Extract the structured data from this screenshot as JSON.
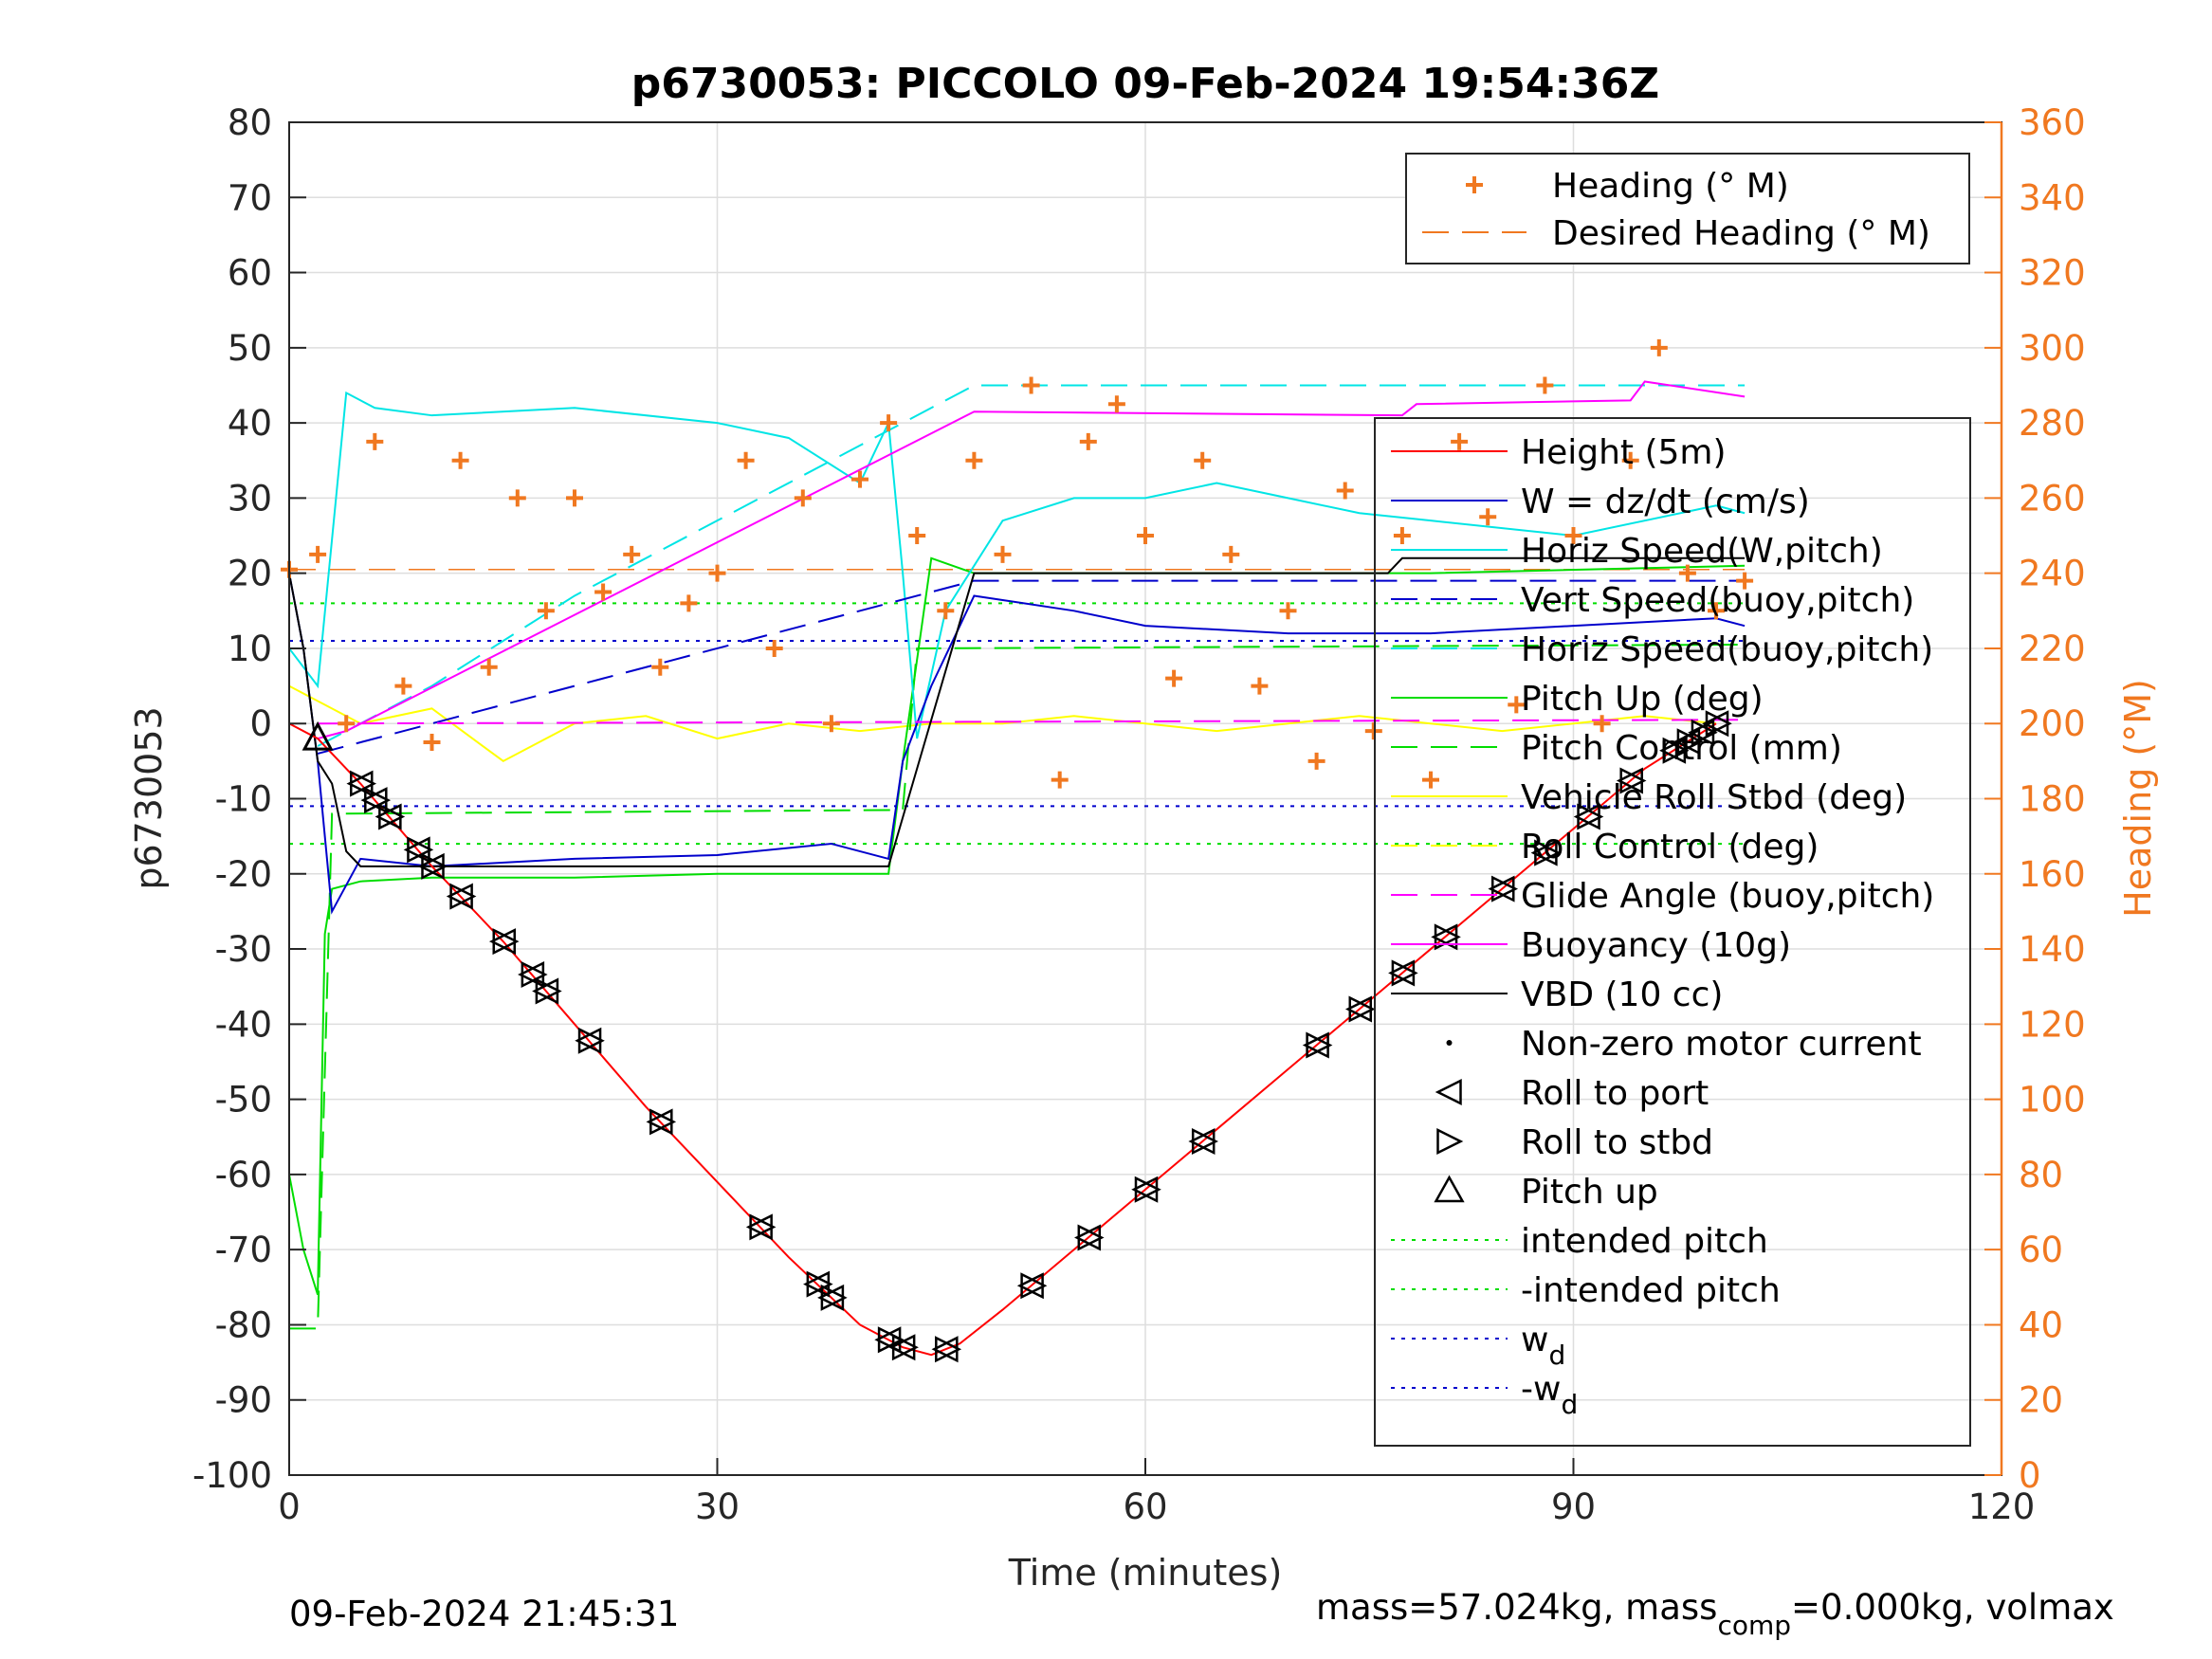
{
  "chart_data": {
    "type": "line",
    "title": "p6730053: PICCOLO 09-Feb-2024 19:54:36Z",
    "xlabel": "Time (minutes)",
    "ylabel": "p6730053",
    "y2label": "Heading (°M)",
    "xlim": [
      0,
      120
    ],
    "ylim": [
      -100,
      80
    ],
    "y2lim": [
      0,
      360
    ],
    "xticks": [
      "0",
      "30",
      "60",
      "90",
      "120"
    ],
    "yticks": [
      "80",
      "70",
      "60",
      "50",
      "40",
      "30",
      "20",
      "10",
      "0",
      "-10",
      "-20",
      "-30",
      "-40",
      "-50",
      "-60",
      "-70",
      "-80",
      "-90",
      "-100"
    ],
    "y2ticks": [
      "360",
      "340",
      "320",
      "300",
      "280",
      "260",
      "240",
      "220",
      "200",
      "180",
      "160",
      "140",
      "120",
      "100",
      "80",
      "60",
      "40",
      "20",
      "0"
    ],
    "grid": true,
    "legend_top": [
      {
        "name": "Heading (° M)",
        "color": "#f07820",
        "style": "plus"
      },
      {
        "name": "Desired Heading (° M)",
        "color": "#f07820",
        "style": "dashed"
      }
    ],
    "legend_main": [
      {
        "name": "Height (5m)",
        "color": "#ff0000",
        "style": "solid"
      },
      {
        "name": "W = dz/dt (cm/s)",
        "color": "#0000cc",
        "style": "solid"
      },
      {
        "name": "Horiz Speed(W,pitch)",
        "color": "#00e5e5",
        "style": "solid"
      },
      {
        "name": "Vert Speed(buoy,pitch)",
        "color": "#0000cc",
        "style": "dashed"
      },
      {
        "name": "Horiz Speed(buoy,pitch)",
        "color": "#00e5e5",
        "style": "dashed"
      },
      {
        "name": "Pitch Up (deg)",
        "color": "#00dd00",
        "style": "solid"
      },
      {
        "name": "Pitch Control (mm)",
        "color": "#00dd00",
        "style": "dashed"
      },
      {
        "name": "Vehicle Roll Stbd (deg)",
        "color": "#ffff00",
        "style": "solid"
      },
      {
        "name": "Roll Control (deg)",
        "color": "#ffff00",
        "style": "dashed"
      },
      {
        "name": "Glide Angle (buoy,pitch)",
        "color": "#ff00ff",
        "style": "dashed"
      },
      {
        "name": "Buoyancy (10g)",
        "color": "#ff00ff",
        "style": "solid"
      },
      {
        "name": "VBD (10 cc)",
        "color": "#000000",
        "style": "solid"
      },
      {
        "name": "Non-zero motor current",
        "color": "#000000",
        "style": "dot"
      },
      {
        "name": "Roll to port",
        "color": "#000000",
        "style": "tri-left"
      },
      {
        "name": "Roll to stbd",
        "color": "#000000",
        "style": "tri-right"
      },
      {
        "name": "Pitch up",
        "color": "#000000",
        "style": "tri-up"
      },
      {
        "name": "intended pitch",
        "color": "#00dd00",
        "style": "dotted"
      },
      {
        "name": "-intended pitch",
        "color": "#00dd00",
        "style": "dotted"
      },
      {
        "name": "w",
        "sub": "d",
        "color": "#0000cc",
        "style": "dotted"
      },
      {
        "name": "-w",
        "sub": "d",
        "color": "#0000cc",
        "style": "dotted"
      }
    ],
    "series": {
      "height_5m": {
        "x": [
          0,
          2,
          5,
          10,
          15,
          20,
          25,
          30,
          35,
          40,
          43,
          45,
          47,
          50,
          55,
          60,
          65,
          70,
          75,
          80,
          85,
          90,
          95,
          100
        ],
        "y": [
          0,
          -2,
          -8,
          -19,
          -29,
          -40,
          -51,
          -61,
          -71,
          -80,
          -83,
          -84,
          -82.5,
          -78,
          -70,
          -62,
          -54,
          -46,
          -38,
          -30,
          -22,
          -14,
          -6,
          0
        ]
      },
      "w_dzdt": {
        "x": [
          0,
          1,
          2,
          3,
          5,
          10,
          20,
          30,
          38,
          42,
          43,
          45,
          48,
          55,
          60,
          70,
          80,
          90,
          100,
          102
        ],
        "y": [
          20,
          10,
          -5,
          -25,
          -18,
          -19,
          -18,
          -17.5,
          -16,
          -18,
          -5,
          5,
          17,
          15,
          13,
          12,
          12,
          13,
          14,
          13
        ]
      },
      "horiz_speed_w": {
        "x": [
          0,
          2,
          4,
          6,
          10,
          20,
          30,
          35,
          40,
          42,
          43,
          44,
          46,
          50,
          55,
          60,
          65,
          70,
          75,
          80,
          90,
          100,
          102
        ],
        "y": [
          10,
          5,
          44,
          42,
          41,
          42,
          40,
          38,
          32,
          40,
          20,
          -2,
          15,
          27,
          30,
          30,
          32,
          30,
          28,
          27,
          25,
          29,
          28
        ]
      },
      "vert_speed_buoy": {
        "x": [
          2,
          10,
          20,
          30,
          40,
          46,
          48,
          102
        ],
        "y": [
          -4,
          0,
          5,
          10,
          15,
          18,
          19,
          19
        ]
      },
      "horiz_speed_buoy": {
        "x": [
          2,
          10,
          20,
          30,
          40,
          46,
          48,
          102
        ],
        "y": [
          -3,
          5,
          17,
          27,
          37,
          43,
          45,
          45
        ]
      },
      "pitch_up": {
        "x": [
          0,
          1,
          2,
          2.5,
          3,
          5,
          10,
          20,
          30,
          40,
          42,
          43,
          45,
          48,
          60,
          80,
          102
        ],
        "y": [
          -60,
          -70,
          -76,
          -28,
          -22,
          -21,
          -20.5,
          -20.5,
          -20,
          -20,
          -20,
          -5,
          22,
          20,
          20,
          20,
          21
        ]
      },
      "pitch_control": {
        "x": [
          0,
          2,
          3,
          43,
          44,
          102
        ],
        "y": [
          -80.5,
          -80.5,
          -12,
          -11.5,
          10,
          10.5
        ]
      },
      "vehicle_roll": {
        "x": [
          0,
          5,
          10,
          15,
          20,
          25,
          30,
          35,
          40,
          45,
          50,
          55,
          60,
          65,
          70,
          75,
          80,
          85,
          90,
          95,
          100
        ],
        "y": [
          5,
          0,
          2,
          -5,
          0,
          1,
          -2,
          0,
          -1,
          0,
          0,
          1,
          0,
          -1,
          0,
          1,
          0,
          -1,
          0,
          1,
          0
        ]
      },
      "glide_angle": {
        "x": [
          2,
          102
        ],
        "y": [
          0,
          0.5
        ]
      },
      "buoyancy": {
        "x": [
          2,
          4,
          48,
          78,
          79,
          94,
          95,
          102
        ],
        "y": [
          -2,
          -1,
          41.5,
          41,
          42.5,
          43,
          45.5,
          43.5
        ]
      },
      "vbd": {
        "x": [
          0,
          1,
          2,
          3,
          4,
          5,
          10,
          20,
          30,
          42,
          48,
          49,
          60,
          77,
          78,
          102
        ],
        "y": [
          20,
          10,
          -5,
          -8,
          -17,
          -19,
          -19,
          -19,
          -19,
          -19,
          20,
          20,
          20,
          20,
          22,
          22
        ]
      },
      "intended_pitch": {
        "y": 16
      },
      "neg_intended_pitch": {
        "y": -16
      },
      "wd": {
        "y": 11
      },
      "neg_wd": {
        "y": -11
      },
      "heading_deg": {
        "x": [
          0,
          2,
          4,
          6,
          8,
          10,
          12,
          14,
          16,
          18,
          20,
          22,
          24,
          26,
          28,
          30,
          32,
          34,
          36,
          38,
          40,
          42,
          44,
          46,
          48,
          50,
          52,
          54,
          56,
          58,
          60,
          62,
          64,
          66,
          68,
          70,
          72,
          74,
          76,
          78,
          80,
          82,
          84,
          86,
          88,
          90,
          92,
          94,
          96,
          98,
          100,
          102
        ],
        "y": [
          241,
          245,
          200,
          275,
          210,
          195,
          270,
          215,
          260,
          230,
          260,
          235,
          245,
          215,
          232,
          240,
          270,
          220,
          260,
          200,
          265,
          280,
          250,
          230,
          270,
          245,
          290,
          185,
          275,
          285,
          250,
          212,
          270,
          245,
          210,
          230,
          190,
          262,
          198,
          250,
          185,
          275,
          255,
          205,
          290,
          250,
          200,
          270,
          300,
          240,
          230,
          238
        ]
      },
      "desired_heading_deg": {
        "y": 241
      }
    },
    "markers": {
      "roll_port_stbd_x": [
        5,
        6,
        7,
        9,
        10,
        12,
        15,
        17,
        18,
        21,
        26,
        33,
        37,
        38,
        42,
        43,
        46,
        52,
        56,
        60,
        64,
        72,
        75,
        78,
        81,
        85,
        88,
        91,
        94,
        97,
        98,
        99,
        100
      ],
      "pitch_up": {
        "x": 2,
        "y": -2
      }
    },
    "footer_date": "09-Feb-2024 21:45:31",
    "footer_mass_1": "mass=57.024kg, mass",
    "footer_mass_sub": "comp",
    "footer_mass_2": "=0.000kg, volmax"
  }
}
